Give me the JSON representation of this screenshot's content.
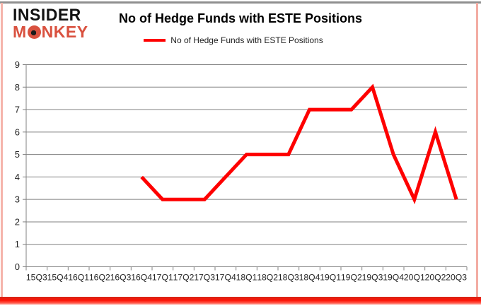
{
  "brand": {
    "insider": "INSIDER",
    "monkey_m": "M",
    "monkey_rest": "NKEY",
    "insider_color": "#121212",
    "monkey_color": "#d9513f"
  },
  "header": {
    "title": "No of Hedge Funds with ESTE Positions"
  },
  "legend": {
    "label": "No of Hedge Funds with ESTE Positions",
    "line_color": "#fe0000"
  },
  "chart_data": {
    "type": "line",
    "title": "No of Hedge Funds with ESTE Positions",
    "categories": [
      "15Q3",
      "15Q4",
      "16Q1",
      "16Q2",
      "16Q3",
      "16Q4",
      "17Q1",
      "17Q2",
      "17Q3",
      "17Q4",
      "18Q1",
      "18Q2",
      "18Q3",
      "18Q4",
      "19Q1",
      "19Q2",
      "19Q3",
      "19Q4",
      "20Q1",
      "20Q2",
      "20Q3"
    ],
    "series": [
      {
        "name": "No of Hedge Funds with ESTE Positions",
        "color": "#fe0000",
        "values": [
          null,
          null,
          null,
          null,
          null,
          4,
          3,
          3,
          3,
          4,
          5,
          5,
          5,
          7,
          7,
          7,
          8,
          5,
          3,
          6,
          3
        ]
      }
    ],
    "xlabel": "",
    "ylabel": "",
    "ylim": [
      0,
      9
    ],
    "yticks": [
      0,
      1,
      2,
      3,
      4,
      5,
      6,
      7,
      8,
      9
    ],
    "grid": true,
    "legend_position": "top-center",
    "grid_color": "#808080",
    "axis_color": "#808080",
    "tick_label_color": "#262626"
  }
}
